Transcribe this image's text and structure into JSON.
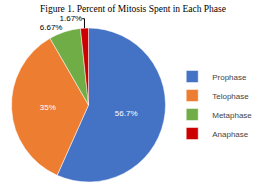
{
  "chart_data": {
    "type": "pie",
    "title": "Figure 1. Percent of Mitosis Spent in Each Phase",
    "categories": [
      "Prophase",
      "Telophase",
      "Metaphase",
      "Anaphase"
    ],
    "values": [
      56.7,
      35,
      6.67,
      1.67
    ],
    "value_labels": [
      "56.7%",
      "35%",
      "6.67%",
      "1.67%"
    ],
    "colors": [
      "#4472C4",
      "#ED7D31",
      "#70AD47",
      "#CC0000"
    ],
    "legend": "right",
    "data_labels": true
  }
}
